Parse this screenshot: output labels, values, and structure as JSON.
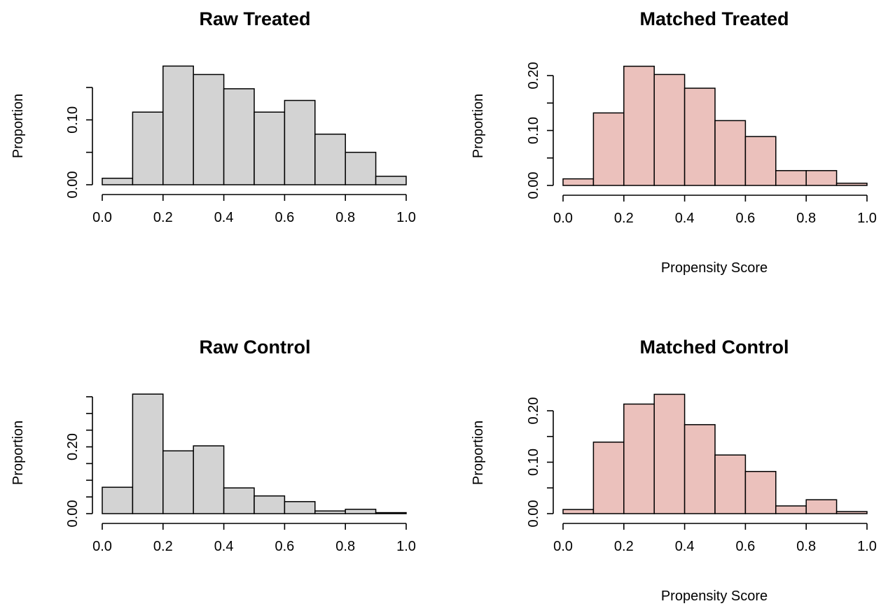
{
  "figure": {
    "panels": [
      {
        "id": "raw-treated",
        "title": "Raw Treated",
        "xlabel": "",
        "ylabel": "Proportion",
        "fill": "#d3d3d3"
      },
      {
        "id": "matched-treated",
        "title": "Matched Treated",
        "xlabel": "Propensity Score",
        "ylabel": "Proportion",
        "fill": "#ebc1bc"
      },
      {
        "id": "raw-control",
        "title": "Raw Control",
        "xlabel": "",
        "ylabel": "Proportion",
        "fill": "#d3d3d3"
      },
      {
        "id": "matched-control",
        "title": "Matched Control",
        "xlabel": "Propensity Score",
        "ylabel": "Proportion",
        "fill": "#ebc1bc"
      }
    ]
  },
  "chart_data": [
    {
      "type": "bar",
      "title": "Raw Treated",
      "xlabel": "",
      "ylabel": "Proportion",
      "bin_edges": [
        0.0,
        0.1,
        0.2,
        0.3,
        0.4,
        0.5,
        0.6,
        0.7,
        0.8,
        0.9,
        1.0
      ],
      "values": [
        0.01,
        0.112,
        0.183,
        0.17,
        0.148,
        0.112,
        0.13,
        0.078,
        0.05,
        0.013
      ],
      "xlim": [
        0.0,
        1.0
      ],
      "ylim": [
        0.0,
        0.15
      ],
      "xticks": [
        0.0,
        0.2,
        0.4,
        0.6,
        0.8,
        1.0
      ],
      "xtick_labels": [
        "0.0",
        "0.2",
        "0.4",
        "0.6",
        "0.8",
        "1.0"
      ],
      "yticks": [
        0.0,
        0.05,
        0.1,
        0.15
      ],
      "ytick_labels": [
        "0.00",
        "",
        "0.10",
        ""
      ]
    },
    {
      "type": "bar",
      "title": "Matched Treated",
      "xlabel": "Propensity Score",
      "ylabel": "Proportion",
      "bin_edges": [
        0.0,
        0.1,
        0.2,
        0.3,
        0.4,
        0.5,
        0.6,
        0.7,
        0.8,
        0.9,
        1.0
      ],
      "values": [
        0.012,
        0.132,
        0.217,
        0.202,
        0.177,
        0.118,
        0.089,
        0.027,
        0.027,
        0.004
      ],
      "xlim": [
        0.0,
        1.0
      ],
      "ylim": [
        0.0,
        0.2
      ],
      "xticks": [
        0.0,
        0.2,
        0.4,
        0.6,
        0.8,
        1.0
      ],
      "xtick_labels": [
        "0.0",
        "0.2",
        "0.4",
        "0.6",
        "0.8",
        "1.0"
      ],
      "yticks": [
        0.0,
        0.05,
        0.1,
        0.15,
        0.2
      ],
      "ytick_labels": [
        "0.00",
        "",
        "0.10",
        "",
        "0.20"
      ]
    },
    {
      "type": "bar",
      "title": "Raw Control",
      "xlabel": "",
      "ylabel": "Proportion",
      "bin_edges": [
        0.0,
        0.1,
        0.2,
        0.3,
        0.4,
        0.5,
        0.6,
        0.7,
        0.8,
        0.9,
        1.0
      ],
      "values": [
        0.079,
        0.358,
        0.188,
        0.203,
        0.077,
        0.053,
        0.036,
        0.008,
        0.013,
        0.003
      ],
      "xlim": [
        0.0,
        1.0
      ],
      "ylim": [
        0.0,
        0.35
      ],
      "xticks": [
        0.0,
        0.2,
        0.4,
        0.6,
        0.8,
        1.0
      ],
      "xtick_labels": [
        "0.0",
        "0.2",
        "0.4",
        "0.6",
        "0.8",
        "1.0"
      ],
      "yticks": [
        0.0,
        0.05,
        0.1,
        0.15,
        0.2,
        0.25,
        0.3,
        0.35
      ],
      "ytick_labels": [
        "0.00",
        "",
        "",
        "",
        "0.20",
        "",
        "",
        ""
      ]
    },
    {
      "type": "bar",
      "title": "Matched Control",
      "xlabel": "Propensity Score",
      "ylabel": "Proportion",
      "bin_edges": [
        0.0,
        0.1,
        0.2,
        0.3,
        0.4,
        0.5,
        0.6,
        0.7,
        0.8,
        0.9,
        1.0
      ],
      "values": [
        0.008,
        0.139,
        0.213,
        0.232,
        0.173,
        0.114,
        0.082,
        0.015,
        0.027,
        0.004
      ],
      "xlim": [
        0.0,
        1.0
      ],
      "ylim": [
        0.0,
        0.2
      ],
      "xticks": [
        0.0,
        0.2,
        0.4,
        0.6,
        0.8,
        1.0
      ],
      "xtick_labels": [
        "0.0",
        "0.2",
        "0.4",
        "0.6",
        "0.8",
        "1.0"
      ],
      "yticks": [
        0.0,
        0.05,
        0.1,
        0.15,
        0.2
      ],
      "ytick_labels": [
        "0.00",
        "",
        "0.10",
        "",
        "0.20"
      ]
    }
  ]
}
